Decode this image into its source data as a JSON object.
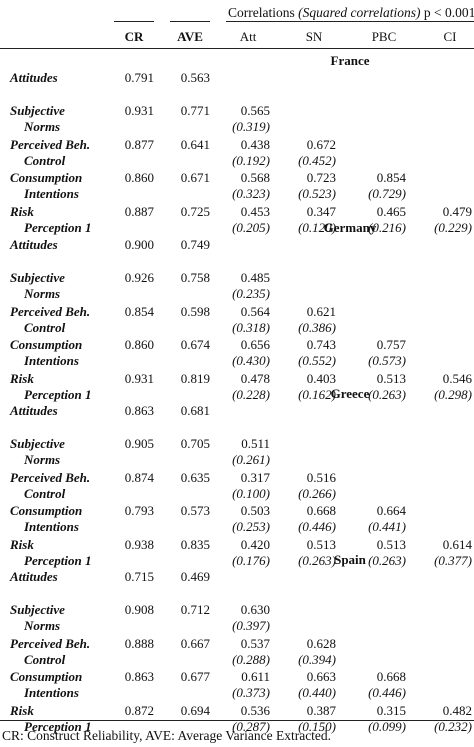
{
  "header": {
    "corr_title": "Correlations",
    "corr_sub": "(Squared correlations)",
    "pval": "p < 0.001",
    "cols": [
      "CR",
      "AVE",
      "Att",
      "SN",
      "PBC",
      "CI"
    ]
  },
  "groups": [
    {
      "country": "France",
      "rows": [
        {
          "l1": "Attitudes",
          "l2": "",
          "cr": "0.791",
          "ave": "0.563",
          "corr": [],
          "sq": []
        },
        {
          "l1": "Subjective",
          "l2": "Norms",
          "cr": "0.931",
          "ave": "0.771",
          "corr": [
            "0.565"
          ],
          "sq": [
            "(0.319)"
          ]
        },
        {
          "l1": "Perceived Beh.",
          "l2": "Control",
          "cr": "0.877",
          "ave": "0.641",
          "corr": [
            "0.438",
            "0.672"
          ],
          "sq": [
            "(0.192)",
            "(0.452)"
          ]
        },
        {
          "l1": "Consumption",
          "l2": "Intentions",
          "cr": "0.860",
          "ave": "0.671",
          "corr": [
            "0.568",
            "0.723",
            "0.854"
          ],
          "sq": [
            "(0.323)",
            "(0.523)",
            "(0.729)"
          ]
        },
        {
          "l1": "Risk",
          "l2": "Perception 1",
          "cr": "0.887",
          "ave": "0.725",
          "corr": [
            "0.453",
            "0.347",
            "0.465",
            "0.479"
          ],
          "sq": [
            "(0.205)",
            "(0.120)",
            "(0.216)",
            "(0.229)"
          ]
        }
      ]
    },
    {
      "country": "Germany",
      "rows": [
        {
          "l1": "Attitudes",
          "l2": "",
          "cr": "0.900",
          "ave": "0.749",
          "corr": [],
          "sq": []
        },
        {
          "l1": "Subjective",
          "l2": "Norms",
          "cr": "0.926",
          "ave": "0.758",
          "corr": [
            "0.485"
          ],
          "sq": [
            "(0.235)"
          ]
        },
        {
          "l1": "Perceived Beh.",
          "l2": "Control",
          "cr": "0.854",
          "ave": "0.598",
          "corr": [
            "0.564",
            "0.621"
          ],
          "sq": [
            "(0.318)",
            "(0.386)"
          ]
        },
        {
          "l1": "Consumption",
          "l2": "Intentions",
          "cr": "0.860",
          "ave": "0.674",
          "corr": [
            "0.656",
            "0.743",
            "0.757"
          ],
          "sq": [
            "(0.430)",
            "(0.552)",
            "(0.573)"
          ]
        },
        {
          "l1": "Risk",
          "l2": "Perception 1",
          "cr": "0.931",
          "ave": "0.819",
          "corr": [
            "0.478",
            "0.403",
            "0.513",
            "0.546"
          ],
          "sq": [
            "(0.228)",
            "(0.162)",
            "(0.263)",
            "(0.298)"
          ]
        }
      ]
    },
    {
      "country": "Greece",
      "rows": [
        {
          "l1": "Attitudes",
          "l2": "",
          "cr": "0.863",
          "ave": "0.681",
          "corr": [],
          "sq": []
        },
        {
          "l1": "Subjective",
          "l2": "Norms",
          "cr": "0.905",
          "ave": "0.705",
          "corr": [
            "0.511"
          ],
          "sq": [
            "(0.261)"
          ]
        },
        {
          "l1": "Perceived Beh.",
          "l2": "Control",
          "cr": "0.874",
          "ave": "0.635",
          "corr": [
            "0.317",
            "0.516"
          ],
          "sq": [
            "(0.100)",
            "(0.266)"
          ]
        },
        {
          "l1": "Consumption",
          "l2": "Intentions",
          "cr": "0.793",
          "ave": "0.573",
          "corr": [
            "0.503",
            "0.668",
            "0.664"
          ],
          "sq": [
            "(0.253)",
            "(0.446)",
            "(0.441)"
          ]
        },
        {
          "l1": "Risk",
          "l2": "Perception 1",
          "cr": "0.938",
          "ave": "0.835",
          "corr": [
            "0.420",
            "0.513",
            "0.513",
            "0.614"
          ],
          "sq": [
            "(0.176)",
            "(0.263)",
            "(0.263)",
            "(0.377)"
          ]
        }
      ]
    },
    {
      "country": "Spain",
      "rows": [
        {
          "l1": "Attitudes",
          "l2": "",
          "cr": "0.715",
          "ave": "0.469",
          "corr": [],
          "sq": []
        },
        {
          "l1": "Subjective",
          "l2": "Norms",
          "cr": "0.908",
          "ave": "0.712",
          "corr": [
            "0.630"
          ],
          "sq": [
            "(0.397)"
          ]
        },
        {
          "l1": "Perceived Beh.",
          "l2": "Control",
          "cr": "0.888",
          "ave": "0.667",
          "corr": [
            "0.537",
            "0.628"
          ],
          "sq": [
            "(0.288)",
            "(0.394)"
          ]
        },
        {
          "l1": "Consumption",
          "l2": "Intentions",
          "cr": "0.863",
          "ave": "0.677",
          "corr": [
            "0.611",
            "0.663",
            "0.668"
          ],
          "sq": [
            "(0.373)",
            "(0.440)",
            "(0.446)"
          ]
        },
        {
          "l1": "Risk",
          "l2": "Perception 1",
          "cr": "0.872",
          "ave": "0.694",
          "corr": [
            "0.536",
            "0.387",
            "0.315",
            "0.482"
          ],
          "sq": [
            "(0.287)",
            "(0.150)",
            "(0.099)",
            "(0.232)"
          ]
        }
      ]
    }
  ],
  "footnote": "CR: Construct Reliability, AVE: Average Variance Extracted."
}
